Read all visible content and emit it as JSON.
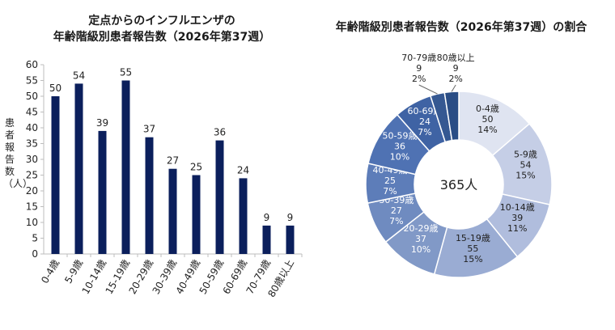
{
  "colors": {
    "bar": "#0b1f5c",
    "axis": "#bdbdbd",
    "pie": [
      "#dfe4f1",
      "#c5cee6",
      "#b0bddd",
      "#9aacd3",
      "#8199c7",
      "#6f8bc0",
      "#5d7db9",
      "#4f72b3",
      "#3f63a4",
      "#355892",
      "#2a4d85"
    ],
    "text": "#222222"
  },
  "chart_data": [
    {
      "type": "bar",
      "title_line1": "定点からのインフルエンザの",
      "title_line2": "年齢階級別患者報告数（2026年第37週）",
      "ylabel": "患者報告数（人）",
      "ylim": [
        0,
        60
      ],
      "yticks": [
        0,
        5,
        10,
        15,
        20,
        25,
        30,
        35,
        40,
        45,
        50,
        55,
        60
      ],
      "categories": [
        "0-4歳",
        "5-9歳",
        "10-14歳",
        "15-19歳",
        "20-29歳",
        "30-39歳",
        "40-49歳",
        "50-59歳",
        "60-69歳",
        "70-79歳",
        "80歳以上"
      ],
      "values": [
        50,
        54,
        39,
        55,
        37,
        27,
        25,
        36,
        24,
        9,
        9
      ]
    },
    {
      "type": "pie",
      "title": "年齢階級別患者報告数（2026年第37週）の割合",
      "center_label": "365人",
      "slices": [
        {
          "label": "0-4歳",
          "value": 50,
          "pct": "14%"
        },
        {
          "label": "5-9歳",
          "value": 54,
          "pct": "15%"
        },
        {
          "label": "10-14歳",
          "value": 39,
          "pct": "11%"
        },
        {
          "label": "15-19歳",
          "value": 55,
          "pct": "15%"
        },
        {
          "label": "20-29歳",
          "value": 37,
          "pct": "10%"
        },
        {
          "label": "30-39歳",
          "value": 27,
          "pct": "7%"
        },
        {
          "label": "40-49歳",
          "value": 25,
          "pct": "7%"
        },
        {
          "label": "50-59歳",
          "value": 36,
          "pct": "10%"
        },
        {
          "label": "60-69歳",
          "value": 24,
          "pct": "7%"
        },
        {
          "label": "70-79歳",
          "value": 9,
          "pct": "2%"
        },
        {
          "label": "80歳以上",
          "value": 9,
          "pct": "2%"
        }
      ]
    }
  ]
}
